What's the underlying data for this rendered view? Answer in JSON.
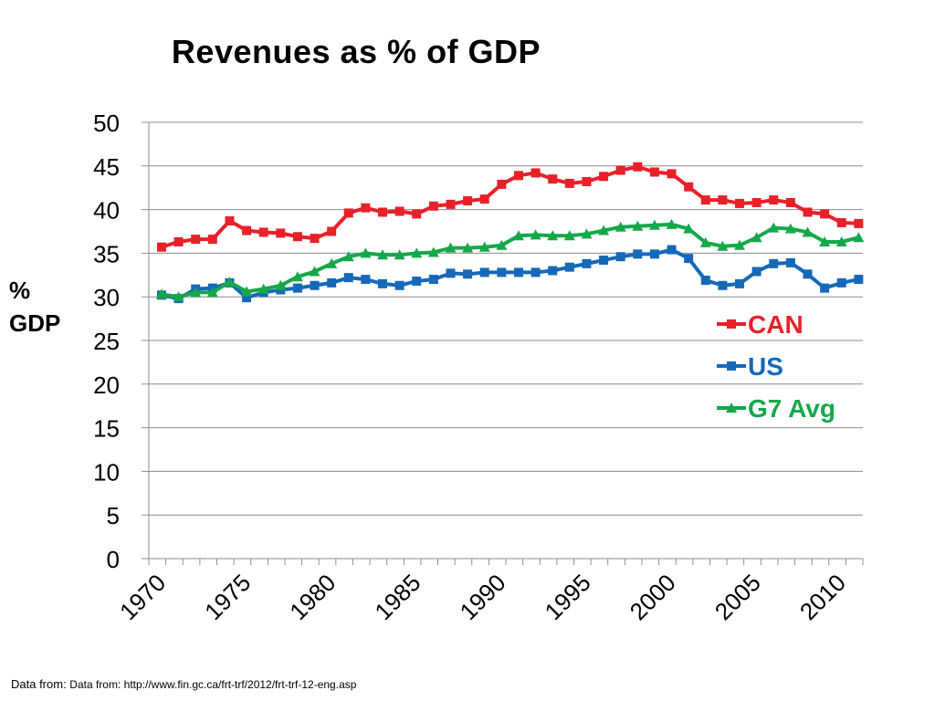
{
  "chart_data": {
    "type": "line",
    "title": "Revenues as % of GDP",
    "ylabel": "% GDP",
    "ylabel_lines": [
      "%",
      "GDP"
    ],
    "xlabel": "",
    "ylim": [
      0,
      50
    ],
    "yticks": [
      0,
      5,
      10,
      15,
      20,
      25,
      30,
      35,
      40,
      45,
      50
    ],
    "xlim": [
      1969.25,
      2011.25
    ],
    "xticks": [
      1970,
      1975,
      1980,
      1985,
      1990,
      1995,
      2000,
      2005,
      2010
    ],
    "grid": true,
    "legend_position": "right",
    "x": [
      1970,
      1971,
      1972,
      1973,
      1974,
      1975,
      1976,
      1977,
      1978,
      1979,
      1980,
      1981,
      1982,
      1983,
      1984,
      1985,
      1986,
      1987,
      1988,
      1989,
      1990,
      1991,
      1992,
      1993,
      1994,
      1995,
      1996,
      1997,
      1998,
      1999,
      2000,
      2001,
      2002,
      2003,
      2004,
      2005,
      2006,
      2007,
      2008,
      2009,
      2010,
      2011
    ],
    "series": [
      {
        "name": "CAN",
        "color": "#e8202a",
        "marker": "square",
        "values": [
          35.7,
          36.3,
          36.6,
          36.6,
          38.7,
          37.6,
          37.4,
          37.3,
          36.9,
          36.7,
          37.5,
          39.6,
          40.2,
          39.7,
          39.8,
          39.5,
          40.4,
          40.6,
          41.0,
          41.2,
          42.9,
          43.9,
          44.2,
          43.5,
          43.0,
          43.2,
          43.8,
          44.5,
          44.9,
          44.3,
          44.1,
          42.6,
          41.1,
          41.1,
          40.7,
          40.8,
          41.1,
          40.8,
          39.7,
          39.5,
          38.5,
          38.4
        ]
      },
      {
        "name": "US",
        "color": "#1569b8",
        "marker": "square",
        "values": [
          30.2,
          29.8,
          30.9,
          31.0,
          31.6,
          29.9,
          30.5,
          30.8,
          31.0,
          31.3,
          31.6,
          32.2,
          32.0,
          31.5,
          31.3,
          31.8,
          32.0,
          32.7,
          32.6,
          32.8,
          32.8,
          32.8,
          32.8,
          33.0,
          33.4,
          33.8,
          34.2,
          34.6,
          34.9,
          34.9,
          35.4,
          34.4,
          31.9,
          31.3,
          31.5,
          32.9,
          33.8,
          33.9,
          32.6,
          31.0,
          31.6,
          32.0
        ]
      },
      {
        "name": "G7 Avg",
        "color": "#14a84b",
        "marker": "triangle",
        "values": [
          30.3,
          30.0,
          30.5,
          30.5,
          31.7,
          30.6,
          30.9,
          31.3,
          32.3,
          32.9,
          33.8,
          34.6,
          35.0,
          34.8,
          34.8,
          35.0,
          35.1,
          35.6,
          35.6,
          35.7,
          35.9,
          37.0,
          37.1,
          37.0,
          37.0,
          37.2,
          37.6,
          38.0,
          38.1,
          38.2,
          38.3,
          37.8,
          36.2,
          35.8,
          35.9,
          36.8,
          37.9,
          37.8,
          37.4,
          36.3,
          36.3,
          36.8
        ]
      }
    ]
  },
  "source": {
    "prefix": "Data from: ",
    "text": "Data from: http://www.fin.gc.ca/frt-trf/2012/frt-trf-12-eng.asp"
  }
}
